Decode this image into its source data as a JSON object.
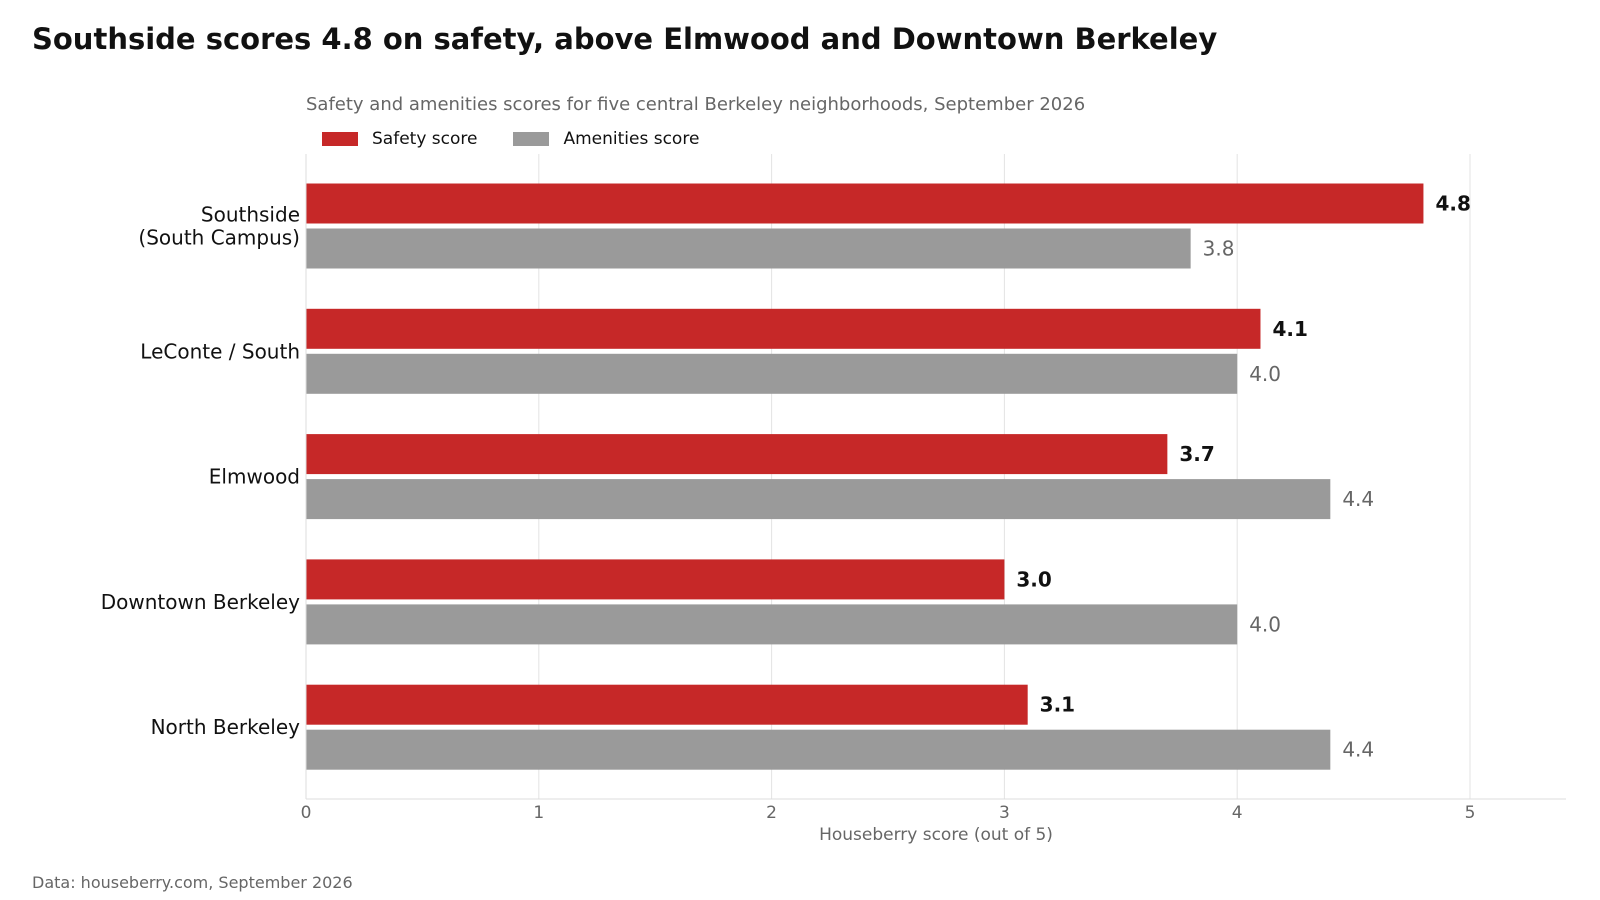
{
  "chart_data": {
    "type": "bar",
    "orientation": "horizontal",
    "title": "Southside scores 4.8 on safety, above Elmwood and Downtown Berkeley",
    "subtitle": "Safety and amenities scores for five central Berkeley neighborhoods, September 2026",
    "xlabel": "Houseberry score (out of 5)",
    "ylabel": "",
    "xlim": [
      0,
      5.4
    ],
    "x_ticks": [
      0,
      1,
      2,
      3,
      4,
      5
    ],
    "grid": "vertical",
    "legend_position": "top-left",
    "categories": [
      [
        "Southside",
        "(South Campus)"
      ],
      [
        "LeConte / South"
      ],
      [
        "Elmwood"
      ],
      [
        "Downtown Berkeley"
      ],
      [
        "North Berkeley"
      ]
    ],
    "series": [
      {
        "name": "Safety score",
        "color": "#c62828",
        "label_color": "#111111",
        "label_weight": "bold",
        "values": [
          4.8,
          4.1,
          3.7,
          3.0,
          3.1
        ]
      },
      {
        "name": "Amenities score",
        "color": "#9a9a9a",
        "label_color": "#666666",
        "label_weight": "normal",
        "values": [
          3.8,
          4.0,
          4.4,
          4.0,
          4.4
        ]
      }
    ],
    "source": "Data: houseberry.com, September 2026"
  }
}
